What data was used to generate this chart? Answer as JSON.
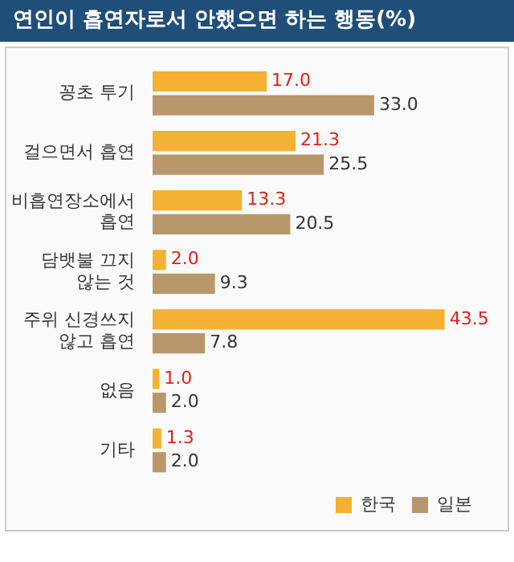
{
  "chart_data": {
    "type": "bar",
    "orientation": "horizontal",
    "title": "연인이 흡연자로서 안했으면 하는 행동(%)",
    "categories": [
      "꽁초 투기",
      "걸으면서 흡연",
      "비흡연장소에서\n흡연",
      "담뱃불 끄지\n않는 것",
      "주위 신경쓰지\n않고 흡연",
      "없음",
      "기타"
    ],
    "series": [
      {
        "name": "한국",
        "color": "#f5b134",
        "values": [
          17.0,
          21.3,
          13.3,
          2.0,
          43.5,
          1.0,
          1.3
        ],
        "value_labels": [
          "17.0",
          "21.3",
          "13.3",
          "2.0",
          "43.5",
          "1.0",
          "1.3"
        ]
      },
      {
        "name": "일본",
        "color": "#b8976a",
        "values": [
          33.0,
          25.5,
          20.5,
          9.3,
          7.8,
          2.0,
          2.0
        ],
        "value_labels": [
          "33.0",
          "25.5",
          "20.5",
          "9.3",
          "7.8",
          "2.0",
          "2.0"
        ]
      }
    ],
    "legend": "bottom right",
    "grid": false
  }
}
